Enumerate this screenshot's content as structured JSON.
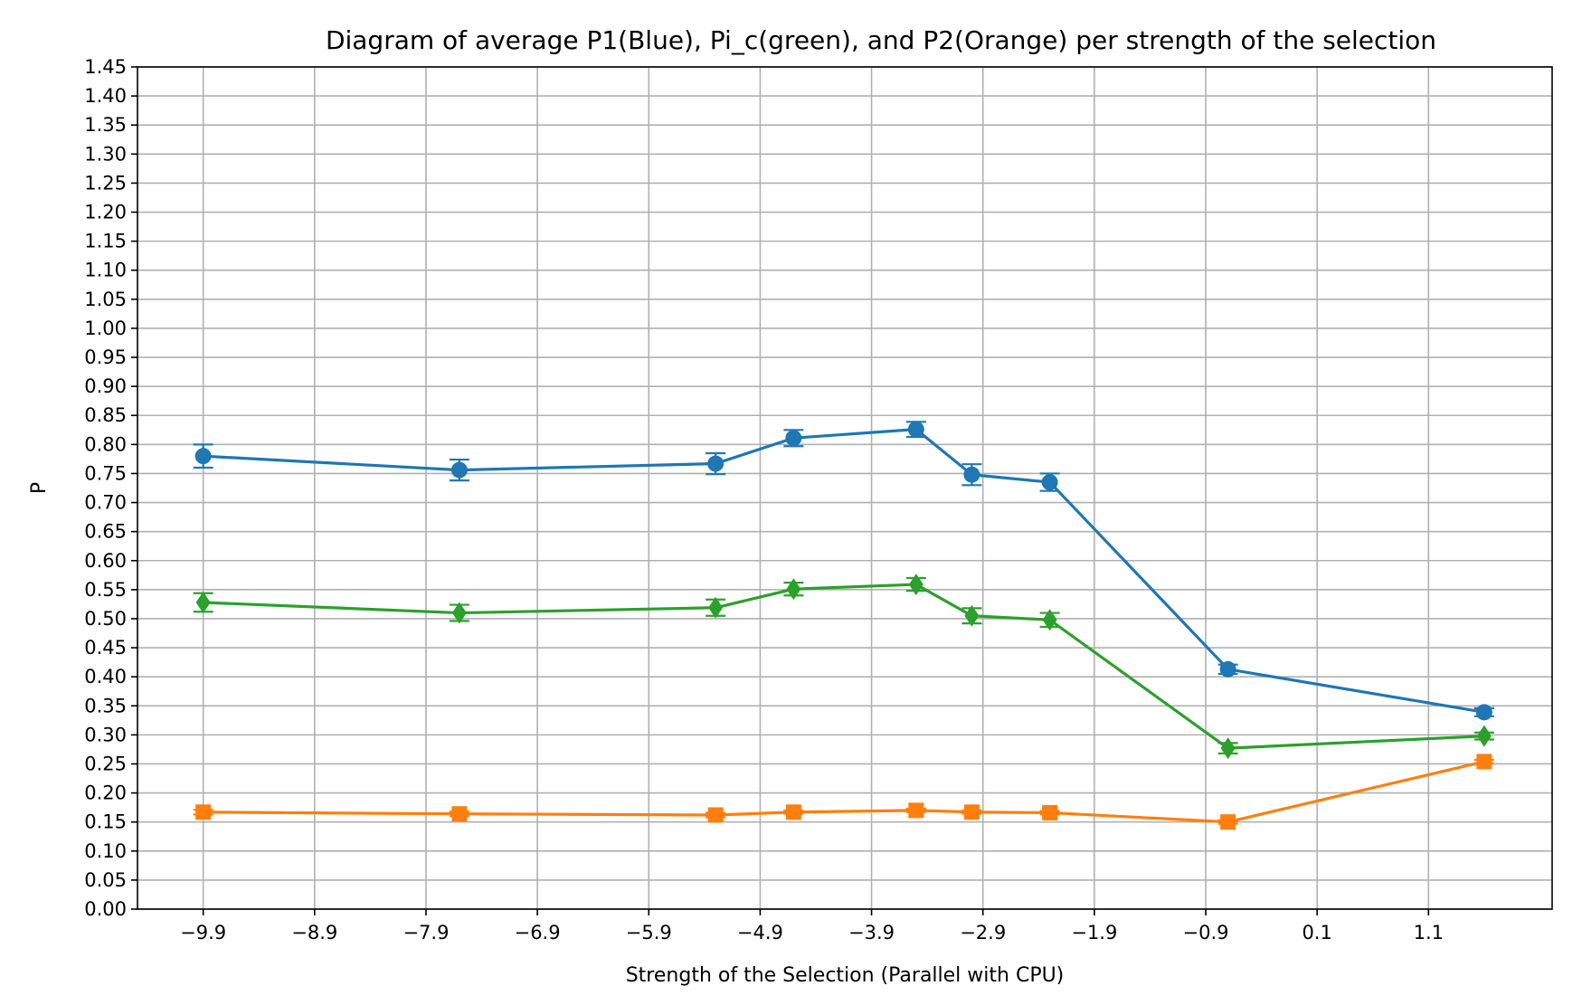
{
  "chart_data": {
    "type": "line",
    "title": "Diagram of average P1(Blue), Pi_c(green), and P2(Orange) per strength of the selection",
    "xlabel": "Strength of the Selection (Parallel with CPU)",
    "ylabel": "P",
    "xlim": [
      -10.49,
      2.21
    ],
    "ylim": [
      0.0,
      1.45
    ],
    "x_ticks": [
      -9.9,
      -8.9,
      -7.9,
      -6.9,
      -5.9,
      -4.9,
      -3.9,
      -2.9,
      -1.9,
      -0.9,
      0.1,
      1.1
    ],
    "x_tick_labels": [
      "−9.9",
      "−8.9",
      "−7.9",
      "−6.9",
      "−5.9",
      "−4.9",
      "−3.9",
      "−2.9",
      "−1.9",
      "−0.9",
      "0.1",
      "1.1"
    ],
    "y_ticks": [
      0.0,
      0.05,
      0.1,
      0.15,
      0.2,
      0.25,
      0.3,
      0.35,
      0.4,
      0.45,
      0.5,
      0.55,
      0.6,
      0.65,
      0.7,
      0.75,
      0.8,
      0.85,
      0.9,
      0.95,
      1.0,
      1.05,
      1.1,
      1.15,
      1.2,
      1.25,
      1.3,
      1.35,
      1.4,
      1.45
    ],
    "y_tick_labels": [
      "0.00",
      "0.05",
      "0.10",
      "0.15",
      "0.20",
      "0.25",
      "0.30",
      "0.35",
      "0.40",
      "0.45",
      "0.50",
      "0.55",
      "0.60",
      "0.65",
      "0.70",
      "0.75",
      "0.80",
      "0.85",
      "0.90",
      "0.95",
      "1.00",
      "1.05",
      "1.10",
      "1.15",
      "1.20",
      "1.25",
      "1.30",
      "1.35",
      "1.40",
      "1.45"
    ],
    "grid": true,
    "x": [
      -9.9,
      -7.6,
      -5.3,
      -4.6,
      -3.5,
      -3.0,
      -2.3,
      -0.7,
      1.6
    ],
    "series": [
      {
        "color": "#1f77b4",
        "marker": "circle",
        "values": [
          0.78,
          0.756,
          0.767,
          0.811,
          0.826,
          0.748,
          0.735,
          0.413,
          0.339
        ],
        "errors": [
          0.02,
          0.018,
          0.018,
          0.014,
          0.013,
          0.018,
          0.015,
          0.008,
          0.007
        ]
      },
      {
        "color": "#2ca02c",
        "marker": "diamond",
        "values": [
          0.528,
          0.51,
          0.519,
          0.551,
          0.559,
          0.505,
          0.498,
          0.277,
          0.298
        ],
        "errors": [
          0.016,
          0.014,
          0.014,
          0.011,
          0.011,
          0.013,
          0.012,
          0.009,
          0.006
        ]
      },
      {
        "color": "#ff7f0e",
        "marker": "square",
        "values": [
          0.167,
          0.164,
          0.162,
          0.167,
          0.17,
          0.167,
          0.166,
          0.15,
          0.254
        ],
        "errors": [
          0.004,
          0.004,
          0.004,
          0.003,
          0.003,
          0.003,
          0.003,
          0.003,
          0.003
        ]
      }
    ]
  }
}
